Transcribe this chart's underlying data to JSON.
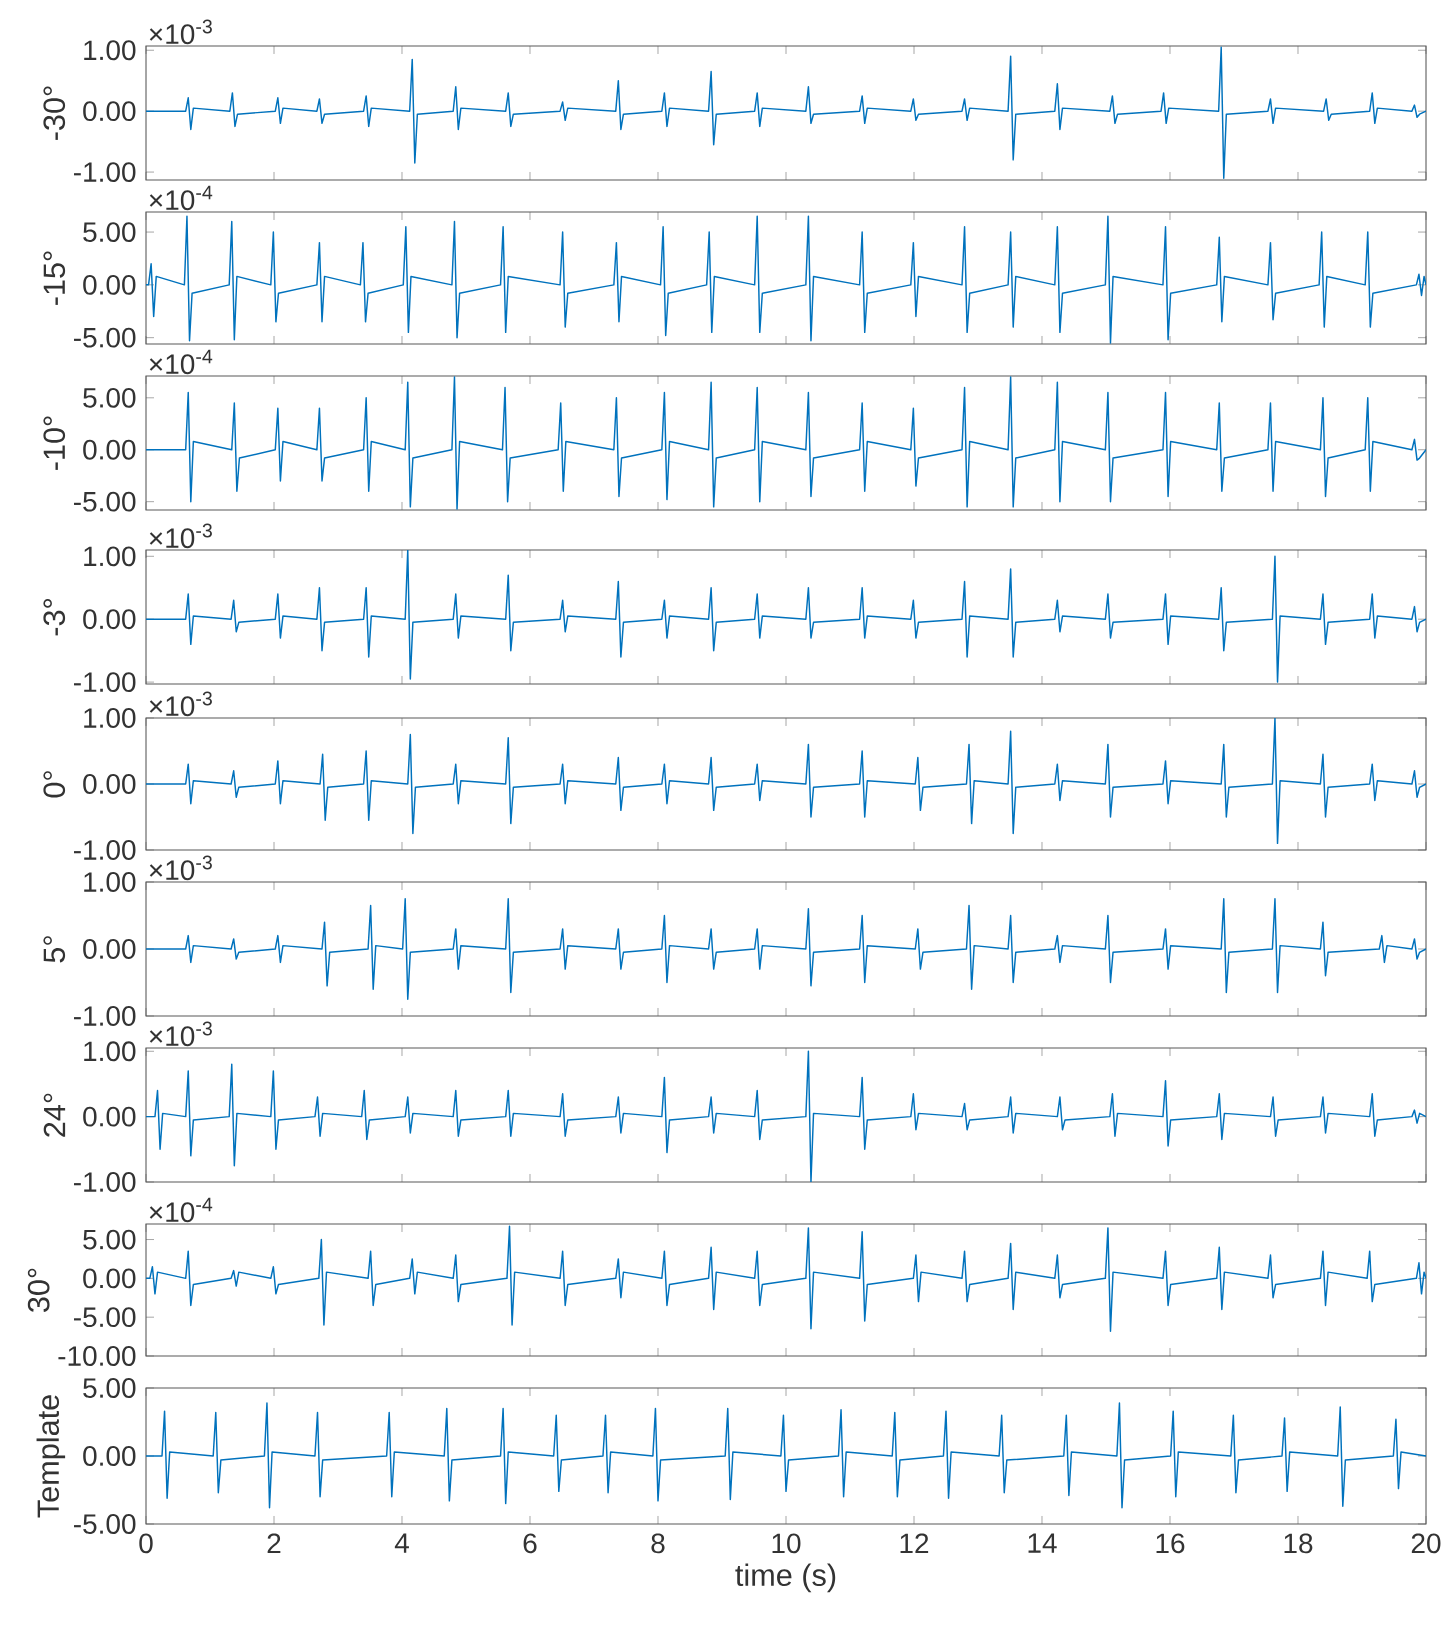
{
  "chart_data": [
    {
      "type": "line",
      "ylabel": "-30°",
      "annotations": [
        "×10$^{-3}$"
      ],
      "color": "#0072bd",
      "tick_labels": "y",
      "xlim": [
        0,
        20
      ],
      "xticks": [
        0,
        2,
        4,
        6,
        8,
        10,
        12,
        14,
        16,
        18,
        20
      ],
      "ylim": [
        -1.13,
        1.07
      ],
      "yticks": [
        {
          "value": -1,
          "label": "-1.00"
        },
        {
          "value": 0,
          "label": "0.00"
        },
        {
          "value": 1,
          "label": "1.00"
        }
      ],
      "x": [
        0,
        0.62,
        0.66,
        0.7,
        0.74,
        1.31,
        1.35,
        1.39,
        1.43,
        2.02,
        2.06,
        2.1,
        2.14,
        2.67,
        2.71,
        2.75,
        2.79,
        3.4,
        3.44,
        3.48,
        3.52,
        4.12,
        4.16,
        4.2,
        4.24,
        4.8,
        4.84,
        4.88,
        4.92,
        5.62,
        5.66,
        5.7,
        5.74,
        6.47,
        6.51,
        6.55,
        6.59,
        7.34,
        7.38,
        7.42,
        7.46,
        8.06,
        8.1,
        8.14,
        8.18,
        8.79,
        8.83,
        8.87,
        8.91,
        9.51,
        9.55,
        9.59,
        9.63,
        10.31,
        10.35,
        10.39,
        10.43,
        11.15,
        11.19,
        11.23,
        11.27,
        11.95,
        11.99,
        12.03,
        12.07,
        12.75,
        12.79,
        12.83,
        12.87,
        13.47,
        13.51,
        13.55,
        13.59,
        14.2,
        14.24,
        14.28,
        14.32,
        15.06,
        15.1,
        15.14,
        15.18,
        15.86,
        15.9,
        15.94,
        15.98,
        16.76,
        16.8,
        16.84,
        16.88,
        17.53,
        17.57,
        17.61,
        17.65,
        18.4,
        18.44,
        18.48,
        18.52,
        19.12,
        19.16,
        19.2,
        19.24,
        19.78,
        19.82,
        19.86,
        19.9,
        20
      ],
      "values": [
        0,
        0,
        0.22,
        -0.3,
        0.05,
        0,
        0.3,
        -0.25,
        -0.05,
        0,
        0.22,
        -0.2,
        0.05,
        0,
        0.2,
        -0.2,
        -0.05,
        0,
        0.25,
        -0.25,
        0.05,
        0,
        0.85,
        -0.85,
        -0.05,
        0,
        0.4,
        -0.3,
        0.05,
        0,
        0.3,
        -0.25,
        -0.05,
        0,
        0.15,
        -0.15,
        0.05,
        0,
        0.5,
        -0.3,
        -0.05,
        0,
        0.3,
        -0.25,
        0.05,
        0,
        0.65,
        -0.55,
        -0.05,
        0,
        0.3,
        -0.25,
        0.05,
        0,
        0.4,
        -0.2,
        -0.05,
        0,
        0.25,
        -0.2,
        0.05,
        0,
        0.2,
        -0.15,
        -0.05,
        0,
        0.2,
        -0.15,
        0.05,
        0,
        0.9,
        -0.8,
        -0.05,
        0,
        0.45,
        -0.3,
        0.05,
        0,
        0.25,
        -0.2,
        -0.05,
        0,
        0.3,
        -0.2,
        0.05,
        0,
        1.05,
        -1.1,
        -0.05,
        0,
        0.2,
        -0.2,
        0.05,
        0,
        0.2,
        -0.15,
        -0.05,
        0,
        0.3,
        -0.2,
        0.05,
        0,
        0.1,
        -0.1,
        -0.05,
        0
      ]
    },
    {
      "type": "line",
      "ylabel": "-15°",
      "annotations": [
        "×10$^{-4}$"
      ],
      "color": "#0072bd",
      "tick_labels": "y",
      "xlim": [
        0,
        20
      ],
      "xticks": [
        0,
        2,
        4,
        6,
        8,
        10,
        12,
        14,
        16,
        18,
        20
      ],
      "ylim": [
        -5.6,
        6.9
      ],
      "yticks": [
        {
          "value": -5,
          "label": "-5.00"
        },
        {
          "value": 0,
          "label": "0.00"
        },
        {
          "value": 5,
          "label": "5.00"
        }
      ],
      "x": [
        0,
        0.04,
        0.08,
        0.12,
        0.16,
        0.6,
        0.64,
        0.68,
        0.72,
        1.3,
        1.34,
        1.38,
        1.42,
        1.95,
        1.99,
        2.03,
        2.07,
        2.67,
        2.71,
        2.75,
        2.79,
        3.35,
        3.39,
        3.43,
        3.47,
        4.02,
        4.06,
        4.1,
        4.14,
        4.78,
        4.82,
        4.86,
        4.9,
        5.54,
        5.58,
        5.62,
        5.66,
        6.47,
        6.51,
        6.55,
        6.59,
        7.31,
        7.35,
        7.39,
        7.43,
        8.04,
        8.08,
        8.12,
        8.16,
        8.76,
        8.8,
        8.84,
        8.88,
        9.51,
        9.55,
        9.59,
        9.63,
        10.31,
        10.35,
        10.39,
        10.43,
        11.15,
        11.19,
        11.23,
        11.27,
        11.95,
        11.99,
        12.03,
        12.07,
        12.75,
        12.79,
        12.83,
        12.87,
        13.47,
        13.51,
        13.55,
        13.59,
        14.2,
        14.24,
        14.28,
        14.32,
        14.99,
        15.03,
        15.07,
        15.11,
        15.89,
        15.93,
        15.97,
        16.01,
        16.73,
        16.77,
        16.81,
        16.85,
        17.53,
        17.57,
        17.61,
        17.65,
        18.33,
        18.37,
        18.41,
        18.45,
        19.05,
        19.09,
        19.13,
        19.17,
        19.85,
        19.89,
        19.93,
        19.97,
        20
      ],
      "values": [
        0,
        0,
        2,
        -3,
        0.8,
        0,
        6.5,
        -5.3,
        -0.8,
        0,
        6,
        -5.2,
        0.8,
        0,
        5,
        -3.5,
        -0.8,
        0,
        4,
        -3.5,
        0.8,
        0,
        4,
        -3.5,
        -0.8,
        0,
        5.5,
        -4.5,
        0.8,
        0,
        6,
        -5,
        -0.8,
        0,
        5.5,
        -4.5,
        0.8,
        0,
        5,
        -4,
        -0.8,
        0,
        4,
        -3.5,
        0.8,
        0,
        5.5,
        -4.8,
        -0.8,
        0,
        5,
        -4.5,
        0.8,
        0,
        6.5,
        -4.5,
        -0.8,
        0,
        6.5,
        -5.3,
        0.8,
        0,
        5,
        -4.5,
        -0.8,
        0,
        4,
        -3,
        0.8,
        0,
        5.5,
        -4.5,
        -0.8,
        0,
        5,
        -4,
        0.8,
        0,
        5.5,
        -4.5,
        -0.8,
        0,
        6.5,
        -5.5,
        0.8,
        0,
        5.5,
        -5.2,
        -0.8,
        0,
        4.5,
        -3.5,
        0.8,
        0,
        4,
        -3.3,
        -0.8,
        0,
        5,
        -4,
        0.8,
        0,
        5,
        -4,
        -0.8,
        0,
        1,
        -1,
        0.8,
        0
      ]
    },
    {
      "type": "line",
      "ylabel": "-10°",
      "annotations": [
        "×10$^{-4}$"
      ],
      "color": "#0072bd",
      "tick_labels": "y",
      "xlim": [
        0,
        20
      ],
      "xticks": [
        0,
        2,
        4,
        6,
        8,
        10,
        12,
        14,
        16,
        18,
        20
      ],
      "ylim": [
        -5.8,
        7.1
      ],
      "yticks": [
        {
          "value": -5,
          "label": "-5.00"
        },
        {
          "value": 0,
          "label": "0.00"
        },
        {
          "value": 5,
          "label": "5.00"
        }
      ],
      "x": [
        0,
        0.62,
        0.66,
        0.7,
        0.74,
        1.34,
        1.38,
        1.42,
        1.46,
        2.02,
        2.06,
        2.1,
        2.14,
        2.67,
        2.71,
        2.75,
        2.79,
        3.4,
        3.44,
        3.48,
        3.52,
        4.05,
        4.09,
        4.13,
        4.17,
        4.78,
        4.82,
        4.86,
        4.9,
        5.57,
        5.61,
        5.65,
        5.69,
        6.44,
        6.48,
        6.52,
        6.56,
        7.31,
        7.35,
        7.39,
        7.43,
        8.06,
        8.1,
        8.14,
        8.18,
        8.79,
        8.83,
        8.87,
        8.91,
        9.51,
        9.55,
        9.59,
        9.63,
        10.31,
        10.35,
        10.39,
        10.43,
        11.15,
        11.19,
        11.23,
        11.27,
        11.95,
        11.99,
        12.03,
        12.07,
        12.75,
        12.79,
        12.83,
        12.87,
        13.47,
        13.51,
        13.55,
        13.59,
        14.2,
        14.24,
        14.28,
        14.32,
        14.99,
        15.03,
        15.07,
        15.11,
        15.89,
        15.93,
        15.97,
        16.01,
        16.73,
        16.77,
        16.81,
        16.85,
        17.53,
        17.57,
        17.61,
        17.65,
        18.35,
        18.39,
        18.43,
        18.47,
        19.05,
        19.09,
        19.13,
        19.17,
        19.78,
        19.82,
        19.86,
        19.9,
        20
      ],
      "values": [
        0,
        0,
        5.5,
        -5,
        0.8,
        0,
        4.5,
        -4,
        -0.8,
        0,
        4,
        -3,
        0.8,
        0,
        4,
        -3,
        -0.8,
        0,
        5,
        -4,
        0.8,
        0,
        6.5,
        -5.5,
        -0.8,
        0,
        7,
        -5.7,
        0.8,
        0,
        6,
        -5,
        -0.8,
        0,
        4.5,
        -4,
        0.8,
        0,
        5,
        -4.5,
        -0.8,
        0,
        5.5,
        -4.8,
        0.8,
        0,
        6.5,
        -5.5,
        -0.8,
        0,
        6,
        -5,
        0.8,
        0,
        5.5,
        -4.5,
        -0.8,
        0,
        4.5,
        -4,
        0.8,
        0,
        4,
        -3.5,
        -0.8,
        0,
        6,
        -5.5,
        0.8,
        0,
        7,
        -5.5,
        -0.8,
        0,
        6.5,
        -5,
        0.8,
        0,
        5.5,
        -5,
        -0.8,
        0,
        5.5,
        -4.5,
        0.8,
        0,
        4.5,
        -4,
        -0.8,
        0,
        4.5,
        -4,
        0.8,
        0,
        5,
        -4.5,
        -0.8,
        0,
        5,
        -4,
        0.8,
        0,
        1,
        -1,
        -0.8,
        0
      ]
    },
    {
      "type": "line",
      "ylabel": "-3°",
      "annotations": [
        "×10$^{-3}$"
      ],
      "color": "#0072bd",
      "tick_labels": "y",
      "xlim": [
        0,
        20
      ],
      "xticks": [
        0,
        2,
        4,
        6,
        8,
        10,
        12,
        14,
        16,
        18,
        20
      ],
      "ylim": [
        -1.03,
        1.1
      ],
      "yticks": [
        {
          "value": -1,
          "label": "-1.00"
        },
        {
          "value": 0,
          "label": "0.00"
        },
        {
          "value": 1,
          "label": "1.00"
        }
      ],
      "x": [
        0,
        0.62,
        0.66,
        0.7,
        0.74,
        1.33,
        1.37,
        1.41,
        1.45,
        2.02,
        2.06,
        2.1,
        2.14,
        2.67,
        2.71,
        2.75,
        2.79,
        3.4,
        3.44,
        3.48,
        3.52,
        4.05,
        4.09,
        4.13,
        4.17,
        4.8,
        4.84,
        4.88,
        4.92,
        5.62,
        5.66,
        5.7,
        5.74,
        6.47,
        6.51,
        6.55,
        6.59,
        7.34,
        7.38,
        7.42,
        7.46,
        8.06,
        8.1,
        8.14,
        8.18,
        8.79,
        8.83,
        8.87,
        8.91,
        9.51,
        9.55,
        9.59,
        9.63,
        10.31,
        10.35,
        10.39,
        10.43,
        11.15,
        11.19,
        11.23,
        11.27,
        11.95,
        11.99,
        12.03,
        12.07,
        12.75,
        12.79,
        12.83,
        12.87,
        13.47,
        13.51,
        13.55,
        13.59,
        14.2,
        14.24,
        14.28,
        14.32,
        14.99,
        15.03,
        15.07,
        15.11,
        15.89,
        15.93,
        15.97,
        16.01,
        16.76,
        16.8,
        16.84,
        16.88,
        17.6,
        17.64,
        17.68,
        17.72,
        18.35,
        18.39,
        18.43,
        18.47,
        19.12,
        19.16,
        19.2,
        19.24,
        19.78,
        19.82,
        19.86,
        19.9,
        20
      ],
      "values": [
        0,
        0,
        0.4,
        -0.4,
        0.05,
        0,
        0.3,
        -0.2,
        -0.05,
        0,
        0.4,
        -0.3,
        0.05,
        0,
        0.5,
        -0.5,
        -0.05,
        0,
        0.5,
        -0.6,
        0.05,
        0,
        1.1,
        -0.95,
        -0.05,
        0,
        0.4,
        -0.3,
        0.05,
        0,
        0.7,
        -0.5,
        -0.05,
        0,
        0.3,
        -0.2,
        0.05,
        0,
        0.6,
        -0.6,
        -0.05,
        0,
        0.3,
        -0.3,
        0.05,
        0,
        0.5,
        -0.5,
        -0.05,
        0,
        0.4,
        -0.3,
        0.05,
        0,
        0.5,
        -0.3,
        -0.05,
        0,
        0.5,
        -0.3,
        0.05,
        0,
        0.3,
        -0.3,
        -0.05,
        0,
        0.6,
        -0.6,
        0.05,
        0,
        0.8,
        -0.6,
        -0.05,
        0,
        0.3,
        -0.2,
        0.05,
        0,
        0.4,
        -0.3,
        -0.05,
        0,
        0.4,
        -0.4,
        0.05,
        0,
        0.5,
        -0.5,
        -0.05,
        0,
        1.0,
        -1.0,
        0.05,
        0,
        0.4,
        -0.4,
        -0.05,
        0,
        0.4,
        -0.3,
        0.05,
        0,
        0.2,
        -0.2,
        -0.05,
        0
      ]
    },
    {
      "type": "line",
      "ylabel": "0°",
      "annotations": [
        "×10$^{-3}$"
      ],
      "color": "#0072bd",
      "tick_labels": "y",
      "xlim": [
        0,
        20
      ],
      "xticks": [
        0,
        2,
        4,
        6,
        8,
        10,
        12,
        14,
        16,
        18,
        20
      ],
      "ylim": [
        -1,
        1
      ],
      "yticks": [
        {
          "value": -1,
          "label": "-1.00"
        },
        {
          "value": 0,
          "label": "0.00"
        },
        {
          "value": 1,
          "label": "1.00"
        }
      ],
      "x": [
        0,
        0.62,
        0.66,
        0.7,
        0.74,
        1.33,
        1.37,
        1.41,
        1.45,
        2.02,
        2.06,
        2.1,
        2.14,
        2.72,
        2.76,
        2.8,
        2.84,
        3.4,
        3.44,
        3.48,
        3.52,
        4.09,
        4.13,
        4.17,
        4.21,
        4.8,
        4.84,
        4.88,
        4.92,
        5.62,
        5.66,
        5.7,
        5.74,
        6.47,
        6.51,
        6.55,
        6.59,
        7.34,
        7.38,
        7.42,
        7.46,
        8.06,
        8.1,
        8.14,
        8.18,
        8.79,
        8.83,
        8.87,
        8.91,
        9.51,
        9.55,
        9.59,
        9.63,
        10.31,
        10.35,
        10.39,
        10.43,
        11.15,
        11.19,
        11.23,
        11.27,
        12.02,
        12.06,
        12.1,
        12.14,
        12.82,
        12.86,
        12.9,
        12.94,
        13.47,
        13.51,
        13.55,
        13.59,
        14.2,
        14.24,
        14.28,
        14.32,
        14.99,
        15.03,
        15.07,
        15.11,
        15.89,
        15.93,
        15.97,
        16.01,
        16.8,
        16.84,
        16.88,
        16.92,
        17.6,
        17.64,
        17.68,
        17.72,
        18.35,
        18.39,
        18.43,
        18.47,
        19.12,
        19.16,
        19.2,
        19.24,
        19.78,
        19.82,
        19.86,
        19.9,
        20
      ],
      "values": [
        0,
        0,
        0.3,
        -0.3,
        0.05,
        0,
        0.2,
        -0.2,
        -0.05,
        0,
        0.35,
        -0.3,
        0.05,
        0,
        0.45,
        -0.55,
        -0.05,
        0,
        0.5,
        -0.55,
        0.05,
        0,
        0.75,
        -0.75,
        -0.05,
        0,
        0.3,
        -0.3,
        0.05,
        0,
        0.7,
        -0.6,
        -0.05,
        0,
        0.3,
        -0.3,
        0.05,
        0,
        0.4,
        -0.4,
        -0.05,
        0,
        0.3,
        -0.3,
        0.05,
        0,
        0.4,
        -0.4,
        -0.05,
        0,
        0.3,
        -0.25,
        0.05,
        0,
        0.6,
        -0.5,
        -0.05,
        0,
        0.5,
        -0.5,
        0.05,
        0,
        0.4,
        -0.4,
        -0.05,
        0,
        0.6,
        -0.6,
        0.05,
        0,
        0.8,
        -0.75,
        -0.05,
        0,
        0.3,
        -0.25,
        0.05,
        0,
        0.6,
        -0.5,
        -0.05,
        0,
        0.35,
        -0.3,
        0.05,
        0,
        0.6,
        -0.5,
        -0.05,
        0,
        1.0,
        -0.9,
        0.05,
        0,
        0.45,
        -0.5,
        -0.05,
        0,
        0.3,
        -0.25,
        0.05,
        0,
        0.2,
        -0.2,
        -0.05,
        0
      ]
    },
    {
      "type": "line",
      "ylabel": "5°",
      "annotations": [
        "×10$^{-3}$"
      ],
      "color": "#0072bd",
      "tick_labels": "y",
      "xlim": [
        0,
        20
      ],
      "xticks": [
        0,
        2,
        4,
        6,
        8,
        10,
        12,
        14,
        16,
        18,
        20
      ],
      "ylim": [
        -1,
        1
      ],
      "yticks": [
        {
          "value": -1,
          "label": "-1.00"
        },
        {
          "value": 0,
          "label": "0.00"
        },
        {
          "value": 1,
          "label": "1.00"
        }
      ],
      "x": [
        0,
        0.62,
        0.66,
        0.7,
        0.74,
        1.33,
        1.37,
        1.41,
        1.45,
        2.02,
        2.06,
        2.1,
        2.14,
        2.75,
        2.79,
        2.83,
        2.87,
        3.47,
        3.51,
        3.55,
        3.59,
        4.01,
        4.05,
        4.09,
        4.13,
        4.8,
        4.84,
        4.88,
        4.92,
        5.62,
        5.66,
        5.7,
        5.74,
        6.47,
        6.51,
        6.55,
        6.59,
        7.34,
        7.38,
        7.42,
        7.46,
        8.06,
        8.1,
        8.14,
        8.18,
        8.79,
        8.83,
        8.87,
        8.91,
        9.51,
        9.55,
        9.59,
        9.63,
        10.31,
        10.35,
        10.39,
        10.43,
        11.15,
        11.19,
        11.23,
        11.27,
        12.02,
        12.06,
        12.1,
        12.14,
        12.82,
        12.86,
        12.9,
        12.94,
        13.47,
        13.51,
        13.55,
        13.59,
        14.2,
        14.24,
        14.28,
        14.32,
        14.99,
        15.03,
        15.07,
        15.11,
        15.89,
        15.93,
        15.97,
        16.01,
        16.8,
        16.84,
        16.88,
        16.92,
        17.6,
        17.64,
        17.68,
        17.72,
        18.35,
        18.39,
        18.43,
        18.47,
        19.27,
        19.31,
        19.35,
        19.39,
        19.78,
        19.82,
        19.86,
        19.9,
        20
      ],
      "values": [
        0,
        0,
        0.2,
        -0.2,
        0.05,
        0,
        0.15,
        -0.15,
        -0.05,
        0,
        0.2,
        -0.2,
        0.05,
        0,
        0.4,
        -0.55,
        -0.05,
        0,
        0.65,
        -0.6,
        0.05,
        0,
        0.75,
        -0.75,
        -0.05,
        0,
        0.3,
        -0.3,
        0.05,
        0,
        0.75,
        -0.65,
        -0.05,
        0,
        0.3,
        -0.3,
        0.05,
        0,
        0.3,
        -0.3,
        -0.05,
        0,
        0.5,
        -0.5,
        0.05,
        0,
        0.3,
        -0.3,
        -0.05,
        0,
        0.3,
        -0.3,
        0.05,
        0,
        0.6,
        -0.55,
        -0.05,
        0,
        0.5,
        -0.5,
        0.05,
        0,
        0.3,
        -0.3,
        -0.05,
        0,
        0.65,
        -0.6,
        0.05,
        0,
        0.5,
        -0.5,
        -0.05,
        0,
        0.2,
        -0.2,
        0.05,
        0,
        0.5,
        -0.5,
        -0.05,
        0,
        0.3,
        -0.3,
        0.05,
        0,
        0.75,
        -0.65,
        -0.05,
        0,
        0.75,
        -0.65,
        0.05,
        0,
        0.4,
        -0.4,
        -0.05,
        0,
        0.2,
        -0.2,
        0.05,
        0,
        0.15,
        -0.15,
        -0.05,
        0
      ]
    },
    {
      "type": "line",
      "ylabel": "24°",
      "annotations": [
        "×10$^{-3}$"
      ],
      "color": "#0072bd",
      "tick_labels": "y",
      "xlim": [
        0,
        20
      ],
      "xticks": [
        0,
        2,
        4,
        6,
        8,
        10,
        12,
        14,
        16,
        18,
        20
      ],
      "ylim": [
        -1,
        1.05
      ],
      "yticks": [
        {
          "value": -1,
          "label": "-1.00"
        },
        {
          "value": 0,
          "label": "0.00"
        },
        {
          "value": 1,
          "label": "1.00"
        }
      ],
      "x": [
        0,
        0.14,
        0.18,
        0.22,
        0.26,
        0.62,
        0.66,
        0.7,
        0.74,
        1.3,
        1.34,
        1.38,
        1.42,
        1.95,
        1.99,
        2.03,
        2.07,
        2.64,
        2.68,
        2.72,
        2.76,
        3.37,
        3.41,
        3.45,
        3.49,
        4.05,
        4.09,
        4.13,
        4.17,
        4.8,
        4.84,
        4.88,
        4.92,
        5.62,
        5.66,
        5.7,
        5.74,
        6.47,
        6.51,
        6.55,
        6.59,
        7.34,
        7.38,
        7.42,
        7.46,
        8.06,
        8.1,
        8.14,
        8.18,
        8.79,
        8.83,
        8.87,
        8.91,
        9.51,
        9.55,
        9.59,
        9.63,
        10.31,
        10.35,
        10.39,
        10.43,
        11.15,
        11.19,
        11.23,
        11.27,
        11.95,
        11.99,
        12.03,
        12.07,
        12.75,
        12.79,
        12.83,
        12.87,
        13.47,
        13.51,
        13.55,
        13.59,
        14.24,
        14.28,
        14.32,
        14.36,
        15.06,
        15.1,
        15.14,
        15.18,
        15.89,
        15.93,
        15.97,
        16.01,
        16.73,
        16.77,
        16.81,
        16.85,
        17.57,
        17.61,
        17.65,
        17.69,
        18.35,
        18.39,
        18.43,
        18.47,
        19.12,
        19.16,
        19.2,
        19.24,
        19.78,
        19.82,
        19.86,
        19.9,
        20
      ],
      "values": [
        0,
        0,
        0.4,
        -0.5,
        0.05,
        0,
        0.7,
        -0.6,
        -0.05,
        0,
        0.8,
        -0.75,
        0.05,
        0,
        0.7,
        -0.5,
        -0.05,
        0,
        0.3,
        -0.3,
        0.05,
        0,
        0.4,
        -0.35,
        -0.05,
        0,
        0.3,
        -0.25,
        0.05,
        0,
        0.4,
        -0.3,
        -0.05,
        0,
        0.4,
        -0.3,
        0.05,
        0,
        0.35,
        -0.3,
        -0.05,
        0,
        0.3,
        -0.25,
        0.05,
        0,
        0.6,
        -0.55,
        -0.05,
        0,
        0.3,
        -0.25,
        0.05,
        0,
        0.4,
        -0.35,
        -0.05,
        0,
        1.0,
        -1.0,
        0.05,
        0,
        0.6,
        -0.5,
        -0.05,
        0,
        0.35,
        -0.2,
        0.05,
        0,
        0.2,
        -0.2,
        -0.05,
        0,
        0.3,
        -0.25,
        0.05,
        0,
        0.3,
        -0.2,
        -0.05,
        0,
        0.35,
        -0.3,
        0.05,
        0,
        0.55,
        -0.45,
        -0.05,
        0,
        0.35,
        -0.35,
        0.05,
        0,
        0.3,
        -0.3,
        -0.05,
        0,
        0.3,
        -0.25,
        0.05,
        0,
        0.35,
        -0.3,
        -0.05,
        0,
        0.1,
        -0.1,
        0.05,
        0
      ]
    },
    {
      "type": "line",
      "ylabel": "30°",
      "annotations": [
        "×10$^{-4}$"
      ],
      "color": "#0072bd",
      "tick_labels": "y",
      "xlim": [
        0,
        20
      ],
      "xticks": [
        0,
        2,
        4,
        6,
        8,
        10,
        12,
        14,
        16,
        18,
        20
      ],
      "ylim": [
        -10,
        7
      ],
      "yticks": [
        {
          "value": -10,
          "label": "-10.00"
        },
        {
          "value": -5,
          "label": "-5.00"
        },
        {
          "value": 0,
          "label": "0.00"
        },
        {
          "value": 5,
          "label": "5.00"
        }
      ],
      "x": [
        0,
        0.06,
        0.1,
        0.14,
        0.18,
        0.62,
        0.66,
        0.7,
        0.74,
        1.33,
        1.37,
        1.41,
        1.45,
        1.95,
        1.99,
        2.03,
        2.07,
        2.7,
        2.74,
        2.78,
        2.82,
        3.47,
        3.51,
        3.55,
        3.59,
        4.12,
        4.16,
        4.2,
        4.24,
        4.8,
        4.84,
        4.88,
        4.92,
        5.64,
        5.68,
        5.72,
        5.76,
        6.47,
        6.51,
        6.55,
        6.59,
        7.34,
        7.38,
        7.42,
        7.46,
        8.06,
        8.1,
        8.14,
        8.18,
        8.79,
        8.83,
        8.87,
        8.91,
        9.51,
        9.55,
        9.59,
        9.63,
        10.31,
        10.35,
        10.39,
        10.43,
        11.15,
        11.19,
        11.23,
        11.27,
        11.99,
        12.03,
        12.07,
        12.11,
        12.75,
        12.79,
        12.83,
        12.87,
        13.47,
        13.51,
        13.55,
        13.59,
        14.2,
        14.24,
        14.28,
        14.32,
        14.99,
        15.03,
        15.07,
        15.11,
        15.89,
        15.93,
        15.97,
        16.01,
        16.73,
        16.77,
        16.81,
        16.85,
        17.53,
        17.57,
        17.61,
        17.65,
        18.35,
        18.39,
        18.43,
        18.47,
        19.08,
        19.12,
        19.16,
        19.2,
        19.85,
        19.89,
        19.93,
        19.97,
        20
      ],
      "values": [
        0,
        0,
        1.5,
        -2,
        0.8,
        0,
        3.5,
        -3.5,
        -0.8,
        0,
        1,
        -1,
        0.8,
        0,
        1.5,
        -2,
        -0.8,
        0,
        5,
        -6,
        0.8,
        0,
        3.5,
        -3.5,
        -0.8,
        0,
        2.5,
        -2,
        0.8,
        0,
        3,
        -3,
        -0.8,
        0,
        6.7,
        -6,
        0.8,
        0,
        3.5,
        -3.5,
        -0.8,
        0,
        2.5,
        -2.5,
        0.8,
        0,
        3.5,
        -3.5,
        -0.8,
        0,
        4,
        -4,
        0.8,
        0,
        3.5,
        -3.5,
        -0.8,
        0,
        6.5,
        -6.5,
        0.8,
        0,
        6,
        -5.5,
        -0.8,
        0,
        3,
        -3,
        0.8,
        0,
        3.5,
        -3,
        -0.8,
        0,
        4.5,
        -4,
        0.8,
        0,
        3,
        -2.5,
        -0.8,
        0,
        6.5,
        -6.8,
        0.8,
        0,
        3.5,
        -3.5,
        -0.8,
        0,
        4,
        -4,
        0.8,
        0,
        3,
        -2.5,
        -0.8,
        0,
        3.5,
        -3.5,
        0.8,
        0,
        3.5,
        -3,
        -0.8,
        0,
        2,
        -2,
        0.8,
        0
      ]
    },
    {
      "type": "line",
      "ylabel": "Template",
      "xlabel": "time (s)",
      "color": "#0072bd",
      "xlim": [
        0,
        20
      ],
      "xticks": [
        0,
        2,
        4,
        6,
        8,
        10,
        12,
        14,
        16,
        18,
        20
      ],
      "ylim": [
        -5,
        5
      ],
      "yticks": [
        {
          "value": -5,
          "label": "-5.00"
        },
        {
          "value": 0,
          "label": "0.00"
        },
        {
          "value": 5,
          "label": "5.00"
        }
      ],
      "x": [
        0,
        0.25,
        0.29,
        0.33,
        0.37,
        1.05,
        1.09,
        1.13,
        1.17,
        1.85,
        1.89,
        1.93,
        1.97,
        2.64,
        2.68,
        2.72,
        2.76,
        3.76,
        3.8,
        3.84,
        3.88,
        4.66,
        4.7,
        4.74,
        4.78,
        5.54,
        5.58,
        5.62,
        5.66,
        6.37,
        6.41,
        6.45,
        6.49,
        7.14,
        7.18,
        7.22,
        7.26,
        7.92,
        7.96,
        8.0,
        8.04,
        9.05,
        9.09,
        9.13,
        9.17,
        9.92,
        9.96,
        10.0,
        10.04,
        10.82,
        10.86,
        10.9,
        10.94,
        11.66,
        11.7,
        11.74,
        11.78,
        12.46,
        12.5,
        12.54,
        12.58,
        13.33,
        13.37,
        13.41,
        13.45,
        14.34,
        14.38,
        14.42,
        14.46,
        15.17,
        15.21,
        15.25,
        15.29,
        16.01,
        16.05,
        16.09,
        16.13,
        16.95,
        16.99,
        17.03,
        17.07,
        17.75,
        17.79,
        17.83,
        17.87,
        18.62,
        18.66,
        18.7,
        18.74,
        19.49,
        19.53,
        19.57,
        19.61,
        20
      ],
      "values": [
        0,
        0,
        3.3,
        -3.1,
        0.3,
        0,
        3.2,
        -2.7,
        -0.3,
        0,
        3.9,
        -3.8,
        0.3,
        0,
        3.2,
        -3.0,
        -0.3,
        0,
        3.2,
        -3.0,
        0.3,
        0,
        3.5,
        -3.3,
        -0.3,
        0,
        3.5,
        -3.5,
        0.3,
        0,
        3.0,
        -2.6,
        -0.3,
        0,
        3.0,
        -2.7,
        0.3,
        0,
        3.5,
        -3.3,
        -0.3,
        0,
        3.5,
        -3.2,
        0.3,
        0,
        3.0,
        -2.6,
        -0.3,
        0,
        3.4,
        -3.0,
        0.3,
        0,
        3.2,
        -3.0,
        -0.3,
        0,
        3.3,
        -3.1,
        0.3,
        0,
        3.0,
        -2.7,
        -0.3,
        0,
        3.0,
        -2.9,
        0.3,
        0,
        3.9,
        -3.8,
        -0.3,
        0,
        3.3,
        -3.0,
        0.3,
        0,
        3.0,
        -2.7,
        -0.3,
        0,
        2.8,
        -2.6,
        0.3,
        0,
        3.6,
        -3.7,
        -0.3,
        0,
        2.7,
        -2.4,
        0.3,
        0
      ]
    }
  ]
}
